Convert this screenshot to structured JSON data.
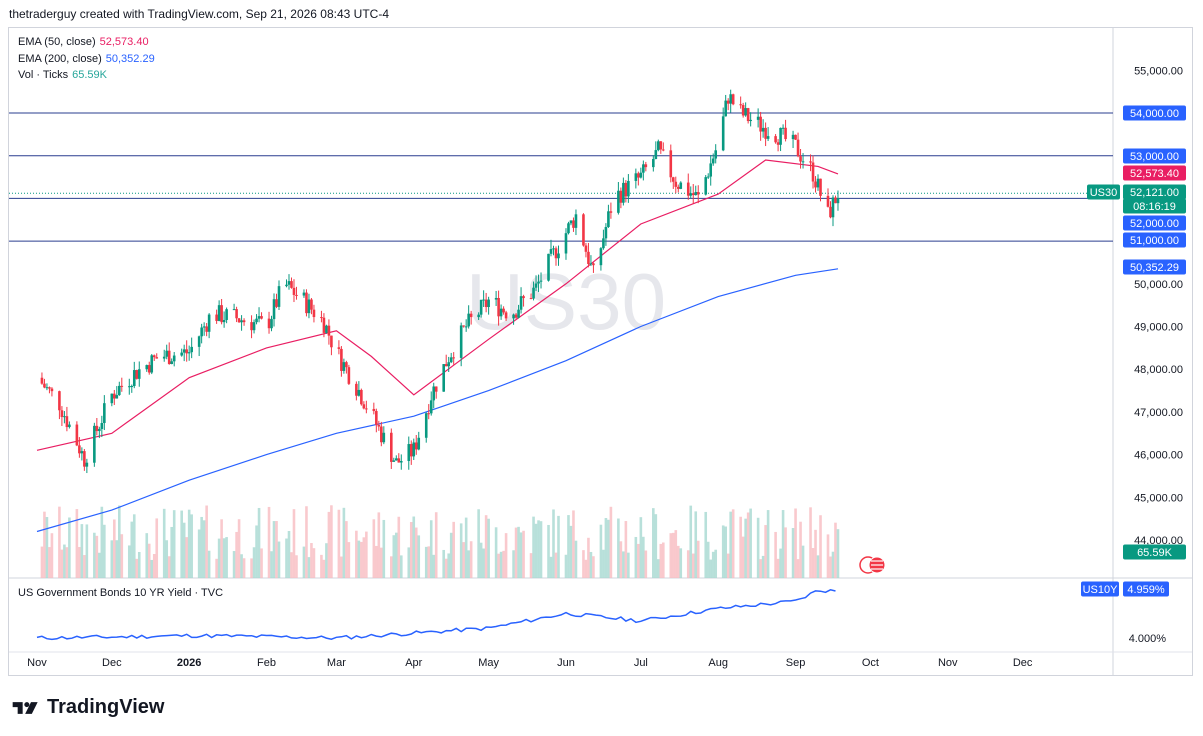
{
  "header": {
    "attribution": "thetraderguy created with TradingView.com, Sep 21, 2026 08:43 UTC-4"
  },
  "watermark": "US30",
  "legend": [
    {
      "label": "EMA (50, close)",
      "value": "52,573.40",
      "color": "#e91e63"
    },
    {
      "label": "EMA (200, close)",
      "value": "50,352.29",
      "color": "#2962ff"
    },
    {
      "label": "Vol · Ticks",
      "value": "65.59K",
      "color": "#26a69a"
    }
  ],
  "lower_pane": {
    "title": "US Government Bonds 10 YR Yield · TVC",
    "tick_label": "4.000%"
  },
  "price_axis_ticks": [
    "55,000.00",
    "50,000.00",
    "49,000.00",
    "48,000.00",
    "47,000.00",
    "46,000.00",
    "45,000.00",
    "44,000.00"
  ],
  "horizontal_lines": [
    54000,
    53000,
    52000,
    51000
  ],
  "price_badges": [
    {
      "text": "54,000.00",
      "bg": "#2962ff"
    },
    {
      "text": "53,000.00",
      "bg": "#2962ff"
    },
    {
      "text": "52,573.40",
      "bg": "#e91e63"
    },
    {
      "text": "52,121.00",
      "bg": "#089981"
    },
    {
      "text": "08:16:19",
      "bg": "#089981"
    },
    {
      "text": "52,000.00",
      "bg": "#2962ff"
    },
    {
      "text": "51,000.00",
      "bg": "#2962ff"
    },
    {
      "text": "50,352.29",
      "bg": "#2962ff"
    },
    {
      "text": "65.59K",
      "bg": "#089981"
    }
  ],
  "symbol_tags": [
    {
      "text": "US30",
      "bg": "#089981"
    },
    {
      "text": "US10Y",
      "bg": "#2962ff"
    },
    {
      "text": "4.959%",
      "bg": "#2962ff"
    }
  ],
  "time_axis": [
    "Nov",
    "Dec",
    "2026",
    "Feb",
    "Mar",
    "Apr",
    "May",
    "Jun",
    "Jul",
    "Aug",
    "Sep",
    "Oct",
    "Nov",
    "Dec"
  ],
  "branding": {
    "name": "TradingView"
  },
  "chart_data": {
    "type": "candlestick",
    "symbol": "US30",
    "last_price": 52121,
    "countdown": "08:16:19",
    "yaxis": {
      "min": 43800,
      "max": 55300
    },
    "close_path": [
      [
        "2025-11-01",
        47800
      ],
      [
        "2025-11-10",
        47200
      ],
      [
        "2025-11-20",
        45900
      ],
      [
        "2025-12-01",
        47400
      ],
      [
        "2025-12-10",
        47900
      ],
      [
        "2025-12-20",
        48300
      ],
      [
        "2026-01-01",
        48400
      ],
      [
        "2026-01-10",
        49300
      ],
      [
        "2026-01-20",
        49200
      ],
      [
        "2026-02-01",
        49000
      ],
      [
        "2026-02-08",
        50000
      ],
      [
        "2026-02-16",
        49600
      ],
      [
        "2026-02-24",
        49100
      ],
      [
        "2026-03-01",
        48400
      ],
      [
        "2026-03-10",
        47500
      ],
      [
        "2026-03-18",
        46600
      ],
      [
        "2026-03-25",
        45800
      ],
      [
        "2026-04-01",
        46100
      ],
      [
        "2026-04-08",
        47400
      ],
      [
        "2026-04-15",
        48300
      ],
      [
        "2026-04-22",
        49000
      ],
      [
        "2026-05-01",
        49600
      ],
      [
        "2026-05-10",
        49300
      ],
      [
        "2026-05-20",
        49900
      ],
      [
        "2026-05-28",
        50800
      ],
      [
        "2026-06-05",
        51600
      ],
      [
        "2026-06-12",
        50200
      ],
      [
        "2026-06-20",
        52000
      ],
      [
        "2026-07-01",
        52500
      ],
      [
        "2026-07-08",
        53100
      ],
      [
        "2026-07-15",
        52400
      ],
      [
        "2026-07-24",
        52000
      ],
      [
        "2026-08-01",
        53300
      ],
      [
        "2026-08-05",
        54400
      ],
      [
        "2026-08-10",
        54000
      ],
      [
        "2026-08-18",
        53700
      ],
      [
        "2026-08-25",
        53500
      ],
      [
        "2026-09-01",
        53200
      ],
      [
        "2026-09-08",
        52600
      ],
      [
        "2026-09-14",
        51600
      ],
      [
        "2026-09-18",
        52121
      ]
    ],
    "ema50": [
      [
        "2025-11-01",
        46100
      ],
      [
        "2025-12-01",
        46500
      ],
      [
        "2026-01-01",
        47800
      ],
      [
        "2026-02-01",
        48500
      ],
      [
        "2026-03-01",
        48900
      ],
      [
        "2026-03-15",
        48300
      ],
      [
        "2026-04-01",
        47400
      ],
      [
        "2026-05-01",
        48700
      ],
      [
        "2026-06-01",
        50000
      ],
      [
        "2026-07-01",
        51400
      ],
      [
        "2026-08-01",
        52100
      ],
      [
        "2026-08-20",
        52900
      ],
      [
        "2026-09-10",
        52750
      ],
      [
        "2026-09-18",
        52573.4
      ]
    ],
    "ema200": [
      [
        "2025-11-01",
        44200
      ],
      [
        "2025-12-01",
        44700
      ],
      [
        "2026-01-01",
        45400
      ],
      [
        "2026-02-01",
        46000
      ],
      [
        "2026-03-01",
        46500
      ],
      [
        "2026-04-01",
        46900
      ],
      [
        "2026-05-01",
        47500
      ],
      [
        "2026-06-01",
        48200
      ],
      [
        "2026-07-01",
        49000
      ],
      [
        "2026-08-01",
        49700
      ],
      [
        "2026-09-01",
        50200
      ],
      [
        "2026-09-18",
        50352.29
      ]
    ],
    "us10y": [
      [
        "2025-11-01",
        4.0
      ],
      [
        "2025-12-01",
        4.02
      ],
      [
        "2026-01-01",
        4.05
      ],
      [
        "2026-02-01",
        4.03
      ],
      [
        "2026-03-01",
        4.0
      ],
      [
        "2026-04-01",
        4.1
      ],
      [
        "2026-05-01",
        4.2
      ],
      [
        "2026-06-01",
        4.5
      ],
      [
        "2026-07-01",
        4.35
      ],
      [
        "2026-08-01",
        4.6
      ],
      [
        "2026-09-01",
        4.75
      ],
      [
        "2026-09-10",
        4.97
      ],
      [
        "2026-09-18",
        4.959
      ]
    ]
  }
}
